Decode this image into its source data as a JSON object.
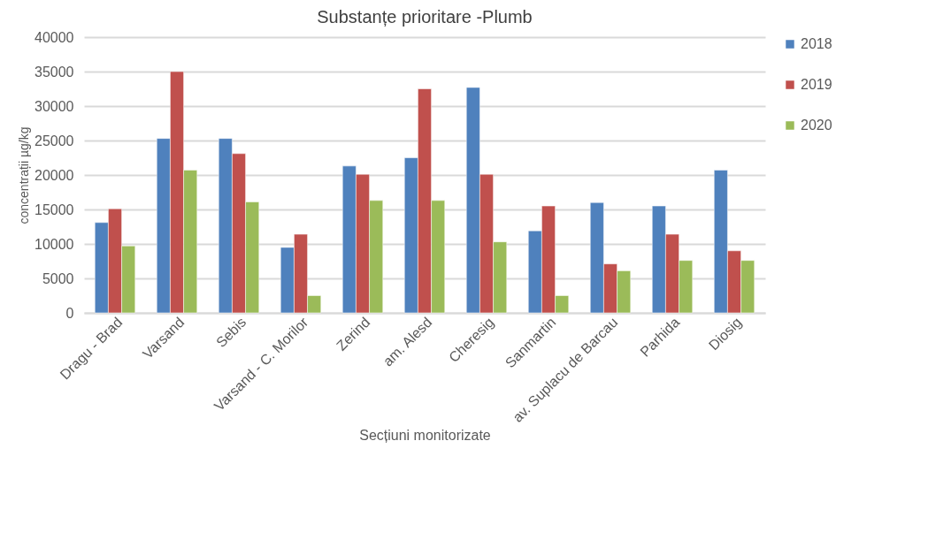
{
  "chart_data": {
    "type": "bar",
    "title": "Substanțe prioritare -Plumb",
    "xlabel": "Secțiuni monitorizate",
    "ylabel": "concentrații µg/kg",
    "categories": [
      "Dragu - Brad",
      "Varsand",
      "Sebis",
      "Varsand - C. Morilor",
      "Zerind",
      "am. Alesd",
      "Cheresig",
      "Sanmartin",
      "av. Suplacu de Barcau",
      "Parhida",
      "Diosig"
    ],
    "series": [
      {
        "name": "2018",
        "color": "#4f81bd",
        "values": [
          13100,
          25300,
          25300,
          9500,
          21300,
          22500,
          32700,
          11900,
          16000,
          15500,
          20700
        ]
      },
      {
        "name": "2019",
        "color": "#c0504d",
        "values": [
          15100,
          35000,
          23100,
          11400,
          20100,
          32500,
          20100,
          15500,
          7100,
          11400,
          9000
        ]
      },
      {
        "name": "2020",
        "color": "#9bbb59",
        "values": [
          9700,
          20700,
          16100,
          2500,
          16300,
          16300,
          10300,
          2500,
          6100,
          7600,
          7600
        ]
      }
    ],
    "ylim": [
      0,
      40000
    ],
    "yticks": [
      0,
      5000,
      10000,
      15000,
      20000,
      25000,
      30000,
      35000,
      40000
    ],
    "grid": "y",
    "legend": "right"
  }
}
